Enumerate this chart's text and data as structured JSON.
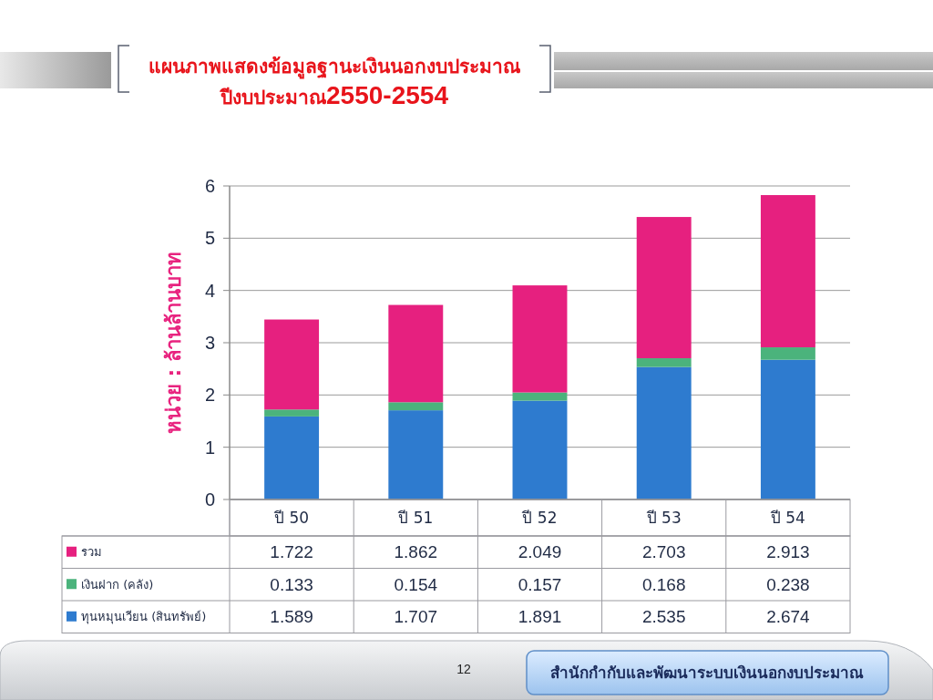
{
  "chart_data": {
    "type": "bar",
    "stacked": true,
    "title": "แผนภาพแสดงข้อมูลฐานะเงินนอกงบประมาณ",
    "subtitle": "ปีงบประมาณ2550-2554",
    "ylabel": "หน่วย : ล้านล้านบาท",
    "categories": [
      "ปี 50",
      "ปี 51",
      "ปี 52",
      "ปี 53",
      "ปี 54"
    ],
    "series": [
      {
        "name": "ทุนหมุนเวียน (สินทรัพย์)",
        "color": "#2e7bcf",
        "values": [
          1.589,
          1.707,
          1.891,
          2.535,
          2.674
        ]
      },
      {
        "name": "เงินฝาก (คลัง)",
        "color": "#4bb37c",
        "values": [
          0.133,
          0.154,
          0.157,
          0.168,
          0.238
        ]
      },
      {
        "name": "รวม",
        "color": "#e6207f",
        "values": [
          1.722,
          1.862,
          2.049,
          2.703,
          2.913
        ]
      }
    ],
    "ylim": [
      0,
      6
    ],
    "yticks": [
      0,
      1,
      2,
      3,
      4,
      5,
      6
    ],
    "grid": "y",
    "legend": "bottom",
    "data_labels": true,
    "annotations": [
      "สำนักกำกับและพัฒนาระบบเงินนอกงบประมาณ",
      "12"
    ]
  }
}
